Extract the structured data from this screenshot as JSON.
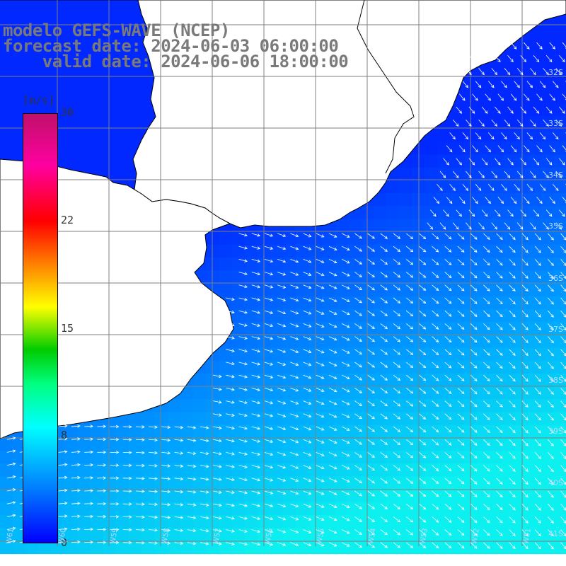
{
  "title": {
    "line1": "modelo GEFS-WAVE (NCEP)",
    "line2": "forecast date: 2024-06-03 06:00:00",
    "line3": "    valid date: 2024-06-06 18:00:00"
  },
  "colorbar": {
    "unit": "[m/s]",
    "ticks": [
      "30",
      "22",
      "15",
      "8",
      "0"
    ],
    "range": [
      0,
      30
    ]
  },
  "lat_labels": [
    "32S",
    "33S",
    "34S",
    "35S",
    "36S",
    "37S",
    "38S",
    "39S",
    "40S",
    "41S"
  ],
  "lon_labels": [
    "W61",
    "W60",
    "W59",
    "W58",
    "W57",
    "W56",
    "W55",
    "W54",
    "W53",
    "W52",
    "W51"
  ],
  "colors": {
    "land": "#ffffff",
    "grid": "#808080",
    "coast": "#000000",
    "arrow": "#ffffff",
    "title": "#7a7a7a"
  }
}
